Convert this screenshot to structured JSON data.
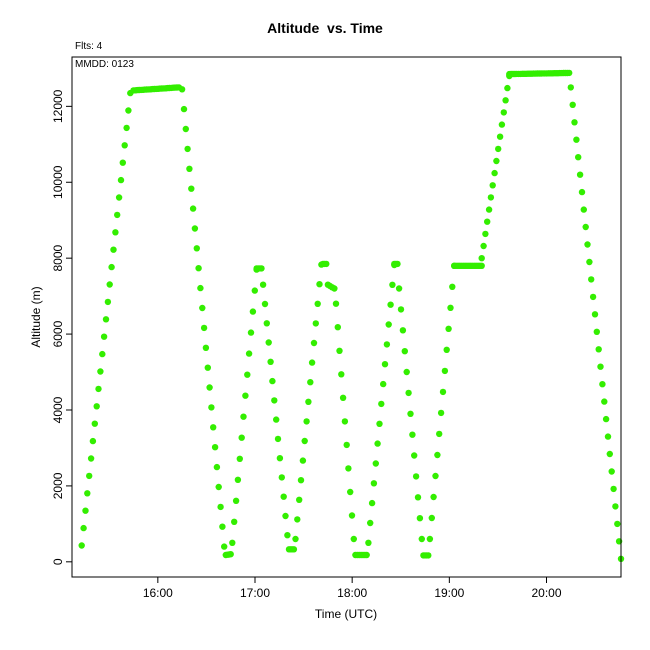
{
  "chart_data": {
    "type": "scatter",
    "title": "Altitude  vs. Time",
    "annotations": {
      "flights": "Flts: 4",
      "date": "MMDD: 0123"
    },
    "xlabel": "Time (UTC)",
    "ylabel": "Altitude (m)",
    "xlim": [
      "15:07",
      "20:46"
    ],
    "ylim": [
      -400,
      13300
    ],
    "x_ticks": [
      "16:00",
      "17:00",
      "18:00",
      "19:00",
      "20:00"
    ],
    "y_ticks": [
      0,
      2000,
      4000,
      6000,
      8000,
      10000,
      12000
    ],
    "grid": false,
    "legend": "none",
    "marker_color": "#33ee00",
    "segments": [
      [
        [
          "15:13",
          430
        ],
        [
          "15:43",
          12350
        ]
      ],
      [
        [
          "15:45",
          12420
        ],
        [
          "16:13",
          12500
        ]
      ],
      [
        [
          "16:15",
          12450
        ],
        [
          "16:41",
          400
        ]
      ],
      [
        [
          "16:42",
          180
        ],
        [
          "16:45",
          200
        ]
      ],
      [
        [
          "16:46",
          500
        ],
        [
          "17:01",
          7700
        ]
      ],
      [
        [
          "17:01",
          7730
        ],
        [
          "17:04",
          7730
        ]
      ],
      [
        [
          "17:05",
          7300
        ],
        [
          "17:20",
          700
        ]
      ],
      [
        [
          "17:21",
          330
        ],
        [
          "17:24",
          330
        ]
      ],
      [
        [
          "17:25",
          600
        ],
        [
          "17:41",
          7830
        ]
      ],
      [
        [
          "17:42",
          7850
        ],
        [
          "17:44",
          7850
        ]
      ],
      [
        [
          "17:45",
          7300
        ],
        [
          "17:49",
          7200
        ]
      ],
      [
        [
          "17:50",
          6800
        ],
        [
          "18:01",
          600
        ]
      ],
      [
        [
          "18:02",
          180
        ],
        [
          "18:09",
          180
        ]
      ],
      [
        [
          "18:10",
          500
        ],
        [
          "18:26",
          7820
        ]
      ],
      [
        [
          "18:26",
          7850
        ],
        [
          "18:28",
          7850
        ]
      ],
      [
        [
          "18:29",
          7200
        ],
        [
          "18:43",
          600
        ]
      ],
      [
        [
          "18:44",
          170
        ],
        [
          "18:47",
          170
        ]
      ],
      [
        [
          "18:48",
          600
        ],
        [
          "19:03",
          7800
        ]
      ],
      [
        [
          "19:03",
          7800
        ],
        [
          "19:20",
          7800
        ]
      ],
      [
        [
          "19:20",
          8000
        ],
        [
          "19:37",
          12800
        ]
      ],
      [
        [
          "19:37",
          12850
        ],
        [
          "20:14",
          12880
        ]
      ],
      [
        [
          "20:15",
          12500
        ],
        [
          "20:46",
          80
        ]
      ]
    ]
  }
}
